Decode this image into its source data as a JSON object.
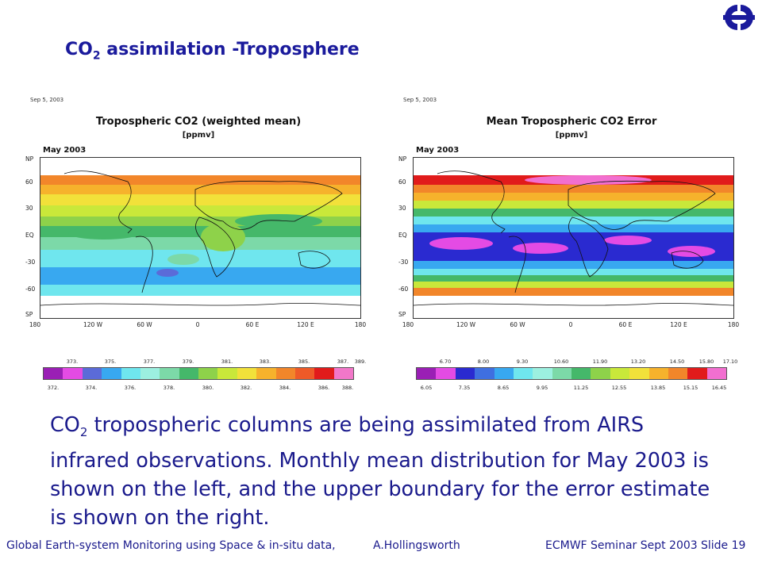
{
  "slide": {
    "title_main": "CO",
    "title_sub": "2",
    "title_rest": " assimilation -Troposphere",
    "body_co": "CO",
    "body_sub": "2",
    "body_text": " tropospheric columns are being assimilated from AIRS infrared observations. Monthly mean distribution for May 2003 is shown on the left, and the upper boundary for the error estimate is shown on the right.",
    "footer_left": "Global Earth-system Monitoring using Space & in-situ data,",
    "footer_author": "A.Hollingsworth",
    "footer_seminar": "ECMWF Seminar Sept 2003",
    "footer_slide": "Slide 19"
  },
  "logo": {
    "icon": "ecmwf-logo",
    "color": "#1a1a9c"
  },
  "maps": [
    {
      "date": "Sep 5, 2003",
      "title": "Tropospheric CO2 (weighted mean)",
      "unit": "[ppmv]",
      "month": "May 2003",
      "lat_labels": [
        "NP",
        "60",
        "30",
        "EQ",
        "-30",
        "-60",
        "SP"
      ],
      "lon_labels": [
        "180",
        "120 W",
        "60 W",
        "0",
        "60 E",
        "120 E",
        "180"
      ],
      "colorbar_top": [
        "373.",
        "375.",
        "377.",
        "379.",
        "381.",
        "383.",
        "385.",
        "387.",
        "389."
      ],
      "colorbar_bottom": [
        "372.",
        "374.",
        "376.",
        "378.",
        "380.",
        "382.",
        "384.",
        "386.",
        "388."
      ],
      "colors": [
        "#9a1fb5",
        "#e44be4",
        "#5b6bd8",
        "#38a8f0",
        "#6fe6ee",
        "#9cf0e0",
        "#7cd9a8",
        "#45b86a",
        "#8ed24a",
        "#c9e83a",
        "#f2e13a",
        "#f6b22c",
        "#f2862a",
        "#ee5a28",
        "#e11b1b",
        "#f277c9"
      ]
    },
    {
      "date": "Sep 5, 2003",
      "title": "Mean Tropospheric CO2 Error",
      "unit": "[ppmv]",
      "month": "May 2003",
      "lat_labels": [
        "NP",
        "60",
        "30",
        "EQ",
        "-30",
        "-60",
        "SP"
      ],
      "lon_labels": [
        "180",
        "120 W",
        "60 W",
        "0",
        "60 E",
        "120 E",
        "180"
      ],
      "colorbar_top": [
        "6.70",
        "8.00",
        "9.30",
        "10.60",
        "11.90",
        "13.20",
        "14.50",
        "15.80",
        "17.10"
      ],
      "colorbar_bottom": [
        "6.05",
        "7.35",
        "8.65",
        "9.95",
        "11.25",
        "12.55",
        "13.85",
        "15.15",
        "16.45"
      ],
      "colors": [
        "#9a1fb5",
        "#e44be4",
        "#2a2ad0",
        "#3f6fe0",
        "#38a8f0",
        "#6fe6ee",
        "#9cf0e0",
        "#7cd9a8",
        "#45b86a",
        "#8ed24a",
        "#c9e83a",
        "#f2e13a",
        "#f6b22c",
        "#f2862a",
        "#e11b1b",
        "#f26fd0"
      ]
    }
  ]
}
